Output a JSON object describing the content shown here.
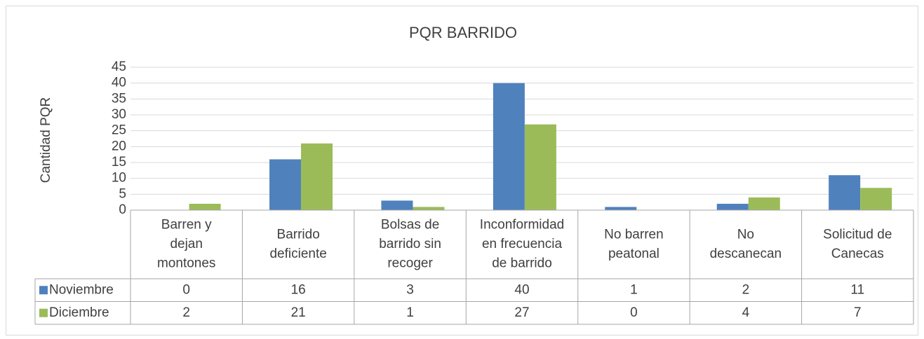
{
  "chart_data": {
    "type": "bar",
    "title": "PQR BARRIDO",
    "y_label": "Cantidad PQR",
    "categories": [
      "Barren y dejan montones",
      "Barrido deficiente",
      "Bolsas de barrido sin recoger",
      "Inconformidad en frecuencia de barrido",
      "No barren peatonal",
      "No descanecan",
      "Solicitud de Canecas"
    ],
    "series": [
      {
        "name": "Noviembre",
        "color": "#4f81bd",
        "values": [
          0,
          16,
          3,
          40,
          1,
          2,
          11
        ]
      },
      {
        "name": "Diciembre",
        "color": "#9bbb59",
        "values": [
          2,
          21,
          1,
          27,
          0,
          4,
          7
        ]
      }
    ],
    "ylim": [
      0,
      45
    ],
    "yticks": [
      0,
      5,
      10,
      15,
      20,
      25,
      30,
      35,
      40,
      45
    ],
    "grid": true
  }
}
